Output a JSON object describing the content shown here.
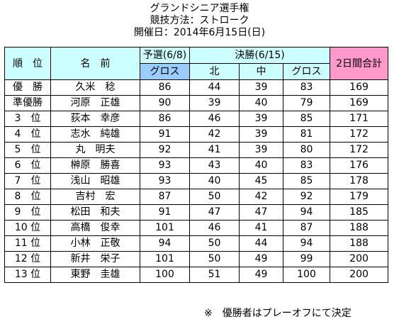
{
  "titles": {
    "line1": "グランドシニア選手権",
    "line2": "競技方法：ストローク",
    "line3": "開催日：2014年6月15日(日)"
  },
  "header": {
    "rank": "順　位",
    "name": "名　前",
    "prelim": "予選(6/8)",
    "final": "決勝(6/15)",
    "total": "2日間合計",
    "gross1": "グロス",
    "north": "北",
    "middle": "中",
    "gross2": "グロス"
  },
  "rows": [
    {
      "rank": "優　勝",
      "name": "久米　稔",
      "prelim": "86",
      "north": "44",
      "middle": "39",
      "gross": "83",
      "total": "169"
    },
    {
      "rank": "準優勝",
      "name": "河原　正雄",
      "prelim": "90",
      "north": "39",
      "middle": "40",
      "gross": "79",
      "total": "169"
    },
    {
      "rank": "3　位",
      "name": "荻本　幸彦",
      "prelim": "86",
      "north": "46",
      "middle": "39",
      "gross": "85",
      "total": "171"
    },
    {
      "rank": "4　位",
      "name": "志水　純雄",
      "prelim": "91",
      "north": "42",
      "middle": "39",
      "gross": "81",
      "total": "172"
    },
    {
      "rank": "5　位",
      "name": "丸　明夫",
      "prelim": "92",
      "north": "41",
      "middle": "39",
      "gross": "80",
      "total": "172"
    },
    {
      "rank": "6　位",
      "name": "榊原　勝喜",
      "prelim": "93",
      "north": "43",
      "middle": "40",
      "gross": "83",
      "total": "176"
    },
    {
      "rank": "7　位",
      "name": "浅山　昭雄",
      "prelim": "93",
      "north": "40",
      "middle": "45",
      "gross": "85",
      "total": "178"
    },
    {
      "rank": "8　位",
      "name": "吉村　宏",
      "prelim": "87",
      "north": "50",
      "middle": "42",
      "gross": "92",
      "total": "179"
    },
    {
      "rank": "9　位",
      "name": "松田　和夫",
      "prelim": "91",
      "north": "47",
      "middle": "47",
      "gross": "94",
      "total": "185"
    },
    {
      "rank": "10 位",
      "name": "高橋　俊幸",
      "prelim": "101",
      "north": "46",
      "middle": "41",
      "gross": "87",
      "total": "188"
    },
    {
      "rank": "11 位",
      "name": "小林　正敬",
      "prelim": "94",
      "north": "50",
      "middle": "44",
      "gross": "94",
      "total": "188"
    },
    {
      "rank": "12 位",
      "name": "新井　栄子",
      "prelim": "101",
      "north": "50",
      "middle": "49",
      "gross": "99",
      "total": "200"
    },
    {
      "rank": "13 位",
      "name": "東野　圭雄",
      "prelim": "100",
      "north": "51",
      "middle": "49",
      "gross": "100",
      "total": "200"
    }
  ],
  "note": "※　優勝者はプレーオフにて決定",
  "colors": {
    "header_aqua": "#ccffff",
    "prelim_blue": "#99ccff",
    "total_pink": "#ff99cc"
  }
}
